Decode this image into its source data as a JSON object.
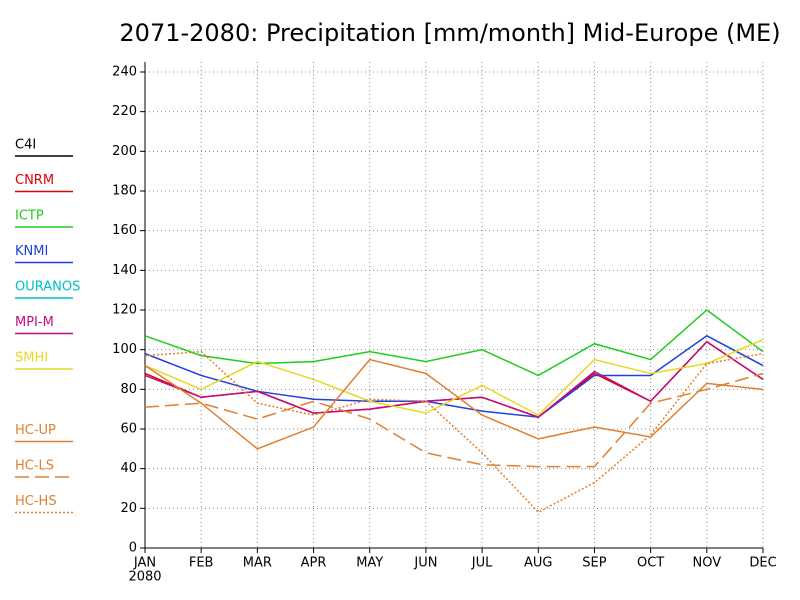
{
  "chart_data": {
    "type": "line",
    "title": "2071-2080: Precipitation [mm/month] Mid-Europe (ME)",
    "categories": [
      "JAN",
      "FEB",
      "MAR",
      "APR",
      "MAY",
      "JUN",
      "JUL",
      "AUG",
      "SEP",
      "OCT",
      "NOV",
      "DEC"
    ],
    "x_sublabel": "2080",
    "ylim": [
      0,
      240
    ],
    "yticks": [
      0,
      20,
      40,
      60,
      80,
      100,
      120,
      140,
      160,
      180,
      200,
      220,
      240
    ],
    "grid": true,
    "legend": "left",
    "series": [
      {
        "name": "C4I",
        "color": "#000000",
        "dash": "solid",
        "values": [
          null,
          null,
          null,
          null,
          null,
          null,
          null,
          null,
          null,
          null,
          null,
          null
        ]
      },
      {
        "name": "CNRM",
        "color": "#e00000",
        "dash": "solid",
        "values": [
          88,
          76,
          79,
          68,
          70,
          74,
          76,
          66,
          88,
          74,
          104,
          85
        ]
      },
      {
        "name": "ICTP",
        "color": "#20cc20",
        "dash": "solid",
        "values": [
          107,
          97,
          93,
          94,
          99,
          94,
          100,
          87,
          103,
          95,
          120,
          99
        ]
      },
      {
        "name": "KNMI",
        "color": "#2040e0",
        "dash": "solid",
        "values": [
          98,
          87,
          79,
          75,
          74,
          74,
          69,
          66,
          87,
          87,
          107,
          92
        ]
      },
      {
        "name": "OURANOS",
        "color": "#00c0c0",
        "dash": "solid",
        "values": [
          null,
          null,
          null,
          null,
          null,
          null,
          null,
          null,
          null,
          null,
          null,
          null
        ]
      },
      {
        "name": "MPI-M",
        "color": "#c01080",
        "dash": "solid",
        "values": [
          87,
          76,
          79,
          68,
          70,
          74,
          76,
          66,
          89,
          74,
          104,
          85
        ]
      },
      {
        "name": "SMHI",
        "color": "#e8d820",
        "dash": "solid",
        "values": [
          92,
          80,
          94,
          85,
          74,
          68,
          82,
          67,
          95,
          88,
          93,
          105
        ]
      },
      {
        "name": "HC-UP",
        "color": "#e08030",
        "dash": "solid",
        "values": [
          92,
          73,
          50,
          61,
          95,
          88,
          67,
          55,
          61,
          56,
          83,
          80
        ]
      },
      {
        "name": "HC-LS",
        "color": "#e08030",
        "dash": "dashed",
        "values": [
          71,
          73,
          65,
          74,
          65,
          48,
          42,
          41,
          41,
          73,
          80,
          88
        ]
      },
      {
        "name": "HC-HS",
        "color": "#e08030",
        "dash": "dotted",
        "values": [
          97,
          99,
          73,
          67,
          75,
          74,
          48,
          18,
          33,
          57,
          93,
          98
        ]
      }
    ]
  }
}
